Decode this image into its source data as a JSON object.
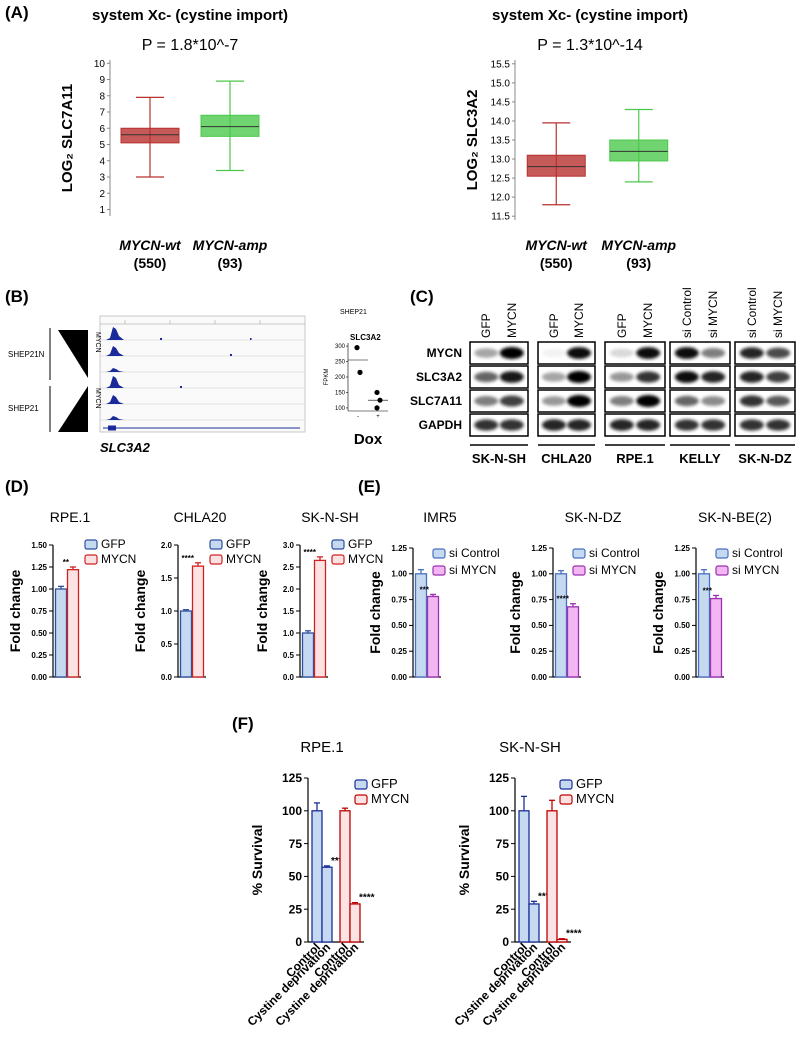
{
  "panel_labels": [
    "(A)",
    "(B)",
    "(C)",
    "(D)",
    "(E)",
    "(F)"
  ],
  "genome_browser": {
    "groups": [
      {
        "label": "SHEP21N",
        "gradient_label": "MYCN"
      },
      {
        "label": "SHEP21",
        "gradient_label": "MYCN"
      }
    ],
    "gene": "SLC3A2"
  },
  "western_blot": {
    "rows": [
      "MYCN",
      "SLC3A2",
      "SLC7A11",
      "GAPDH"
    ],
    "columns": [
      {
        "cell_line": "SK-N-SH",
        "lanes": [
          "GFP",
          "MYCN"
        ]
      },
      {
        "cell_line": "CHLA20",
        "lanes": [
          "GFP",
          "MYCN"
        ]
      },
      {
        "cell_line": "RPE.1",
        "lanes": [
          "GFP",
          "MYCN"
        ]
      },
      {
        "cell_line": "KELLY",
        "lanes": [
          "si Control",
          "si MYCN"
        ]
      },
      {
        "cell_line": "SK-N-DZ",
        "lanes": [
          "si Control",
          "si MYCN"
        ]
      }
    ]
  },
  "chart_data": [
    {
      "type": "box",
      "title": "system Xc-  (cystine import)",
      "subtitle": "P = 1.8*10^-7",
      "y_label": "LOG₂ SLC7A11",
      "categories": [
        "MYCN-wt",
        "MYCN-amp"
      ],
      "counts": [
        "(550)",
        "(93)"
      ],
      "colors": [
        "#b8312f",
        "#4cc94c"
      ],
      "whisker_low": [
        3.0,
        3.4
      ],
      "q1": [
        5.1,
        5.5
      ],
      "median": [
        5.6,
        6.1
      ],
      "q3": [
        6.0,
        6.8
      ],
      "whisker_high": [
        7.9,
        8.9
      ],
      "ylim": [
        0.6,
        10.2
      ],
      "yticks": [
        1,
        2,
        3,
        4,
        5,
        6,
        7,
        8,
        9,
        10
      ]
    },
    {
      "type": "box",
      "title": "system Xc-  (cystine import)",
      "subtitle": "P = 1.3*10^-14",
      "y_label": "LOG₂ SLC3A2",
      "categories": [
        "MYCN-wt",
        "MYCN-amp"
      ],
      "counts": [
        "(550)",
        "(93)"
      ],
      "colors": [
        "#b8312f",
        "#4cc94c"
      ],
      "whisker_low": [
        11.8,
        12.4
      ],
      "q1": [
        12.55,
        12.95
      ],
      "median": [
        12.8,
        13.2
      ],
      "q3": [
        13.1,
        13.5
      ],
      "whisker_high": [
        13.95,
        14.3
      ],
      "ylim": [
        11.4,
        15.6
      ],
      "yticks": [
        11.5,
        {
          "value": 12,
          "label": "12.0"
        },
        12.5,
        {
          "value": 13,
          "label": "13.0"
        },
        13.5,
        {
          "value": 14,
          "label": "14.0"
        },
        14.5,
        {
          "value": 15,
          "label": "15.0"
        },
        15.5
      ]
    },
    {
      "type": "dot",
      "header": "SHEP21",
      "title": "SLC3A2",
      "y_label": "FPKM",
      "x_label": "Dox",
      "categories": [
        "-",
        "+"
      ],
      "groups": [
        [
          295,
          215
        ],
        [
          150,
          125,
          100
        ]
      ],
      "means": [
        255,
        125
      ],
      "ylim": [
        90,
        310
      ],
      "yticks": [
        100,
        150,
        200,
        250,
        300
      ]
    },
    {
      "type": "bar",
      "title": "RPE.1",
      "y_label": "Fold change",
      "categories": [
        null,
        null
      ],
      "significance": [
        null,
        "**"
      ],
      "series": [
        {
          "name": "GFP",
          "fill": "#c5d9f1",
          "color": "#2e4fa0",
          "values": [
            1.0,
            null
          ],
          "errors": [
            0.03,
            null
          ]
        },
        {
          "name": "MYCN",
          "fill": "#fbe3e3",
          "color": "#d02020",
          "values": [
            null,
            1.22
          ],
          "errors": [
            null,
            0.03
          ]
        }
      ],
      "ylim": [
        0,
        1.5
      ],
      "yticks": [
        {
          "value": 0,
          "label": "0.00"
        },
        0.25,
        {
          "value": 0.5,
          "label": "0.50"
        },
        0.75,
        {
          "value": 1,
          "label": "1.00"
        },
        1.25,
        {
          "value": 1.5,
          "label": "1.50"
        }
      ]
    },
    {
      "type": "bar",
      "title": "CHLA20",
      "y_label": "Fold change",
      "categories": [
        null,
        null
      ],
      "significance": [
        null,
        "****"
      ],
      "series": [
        {
          "name": "GFP",
          "fill": "#c5d9f1",
          "color": "#2e4fa0",
          "values": [
            1.0,
            null
          ],
          "errors": [
            0.02,
            null
          ]
        },
        {
          "name": "MYCN",
          "fill": "#fbe3e3",
          "color": "#d02020",
          "values": [
            null,
            1.68
          ],
          "errors": [
            null,
            0.05
          ]
        }
      ],
      "ylim": [
        0,
        2
      ],
      "yticks": [
        {
          "value": 0,
          "label": "0.0"
        },
        0.5,
        {
          "value": 1,
          "label": "1.0"
        },
        1.5,
        {
          "value": 2,
          "label": "2.0"
        }
      ]
    },
    {
      "type": "bar",
      "title": "SK-N-SH",
      "y_label": "Fold change",
      "categories": [
        null,
        null
      ],
      "significance": [
        null,
        "****"
      ],
      "series": [
        {
          "name": "GFP",
          "fill": "#c5d9f1",
          "color": "#2e4fa0",
          "values": [
            1.0,
            null
          ],
          "errors": [
            0.05,
            null
          ]
        },
        {
          "name": "MYCN",
          "fill": "#fbe3e3",
          "color": "#d02020",
          "values": [
            null,
            2.65
          ],
          "errors": [
            null,
            0.08
          ]
        }
      ],
      "ylim": [
        0,
        3
      ],
      "yticks": [
        {
          "value": 0,
          "label": "0.0"
        },
        0.5,
        {
          "value": 1,
          "label": "1.0"
        },
        1.5,
        {
          "value": 2,
          "label": "2.0"
        },
        2.5,
        {
          "value": 3,
          "label": "3.0"
        }
      ]
    },
    {
      "type": "bar",
      "title": "IMR5",
      "y_label": "Fold change",
      "categories": [
        null,
        null
      ],
      "significance": [
        null,
        "***"
      ],
      "series": [
        {
          "name": "si Control",
          "fill": "#c5d9f1",
          "color": "#4a6fc0",
          "values": [
            1.0,
            null
          ],
          "errors": [
            0.04,
            null
          ]
        },
        {
          "name": "si MYCN",
          "fill": "#f2b6f2",
          "color": "#9b30b0",
          "values": [
            null,
            0.78
          ],
          "errors": [
            null,
            0.02
          ]
        }
      ],
      "ylim": [
        0,
        1.25
      ],
      "yticks": [
        {
          "value": 0,
          "label": "0.00"
        },
        0.25,
        {
          "value": 0.5,
          "label": "0.50"
        },
        0.75,
        {
          "value": 1,
          "label": "1.00"
        },
        1.25
      ]
    },
    {
      "type": "bar",
      "title": "SK-N-DZ",
      "y_label": "Fold change",
      "categories": [
        null,
        null
      ],
      "significance": [
        null,
        "****"
      ],
      "series": [
        {
          "name": "si Control",
          "fill": "#c5d9f1",
          "color": "#4a6fc0",
          "values": [
            1.0,
            null
          ],
          "errors": [
            0.03,
            null
          ]
        },
        {
          "name": "si MYCN",
          "fill": "#f2b6f2",
          "color": "#9b30b0",
          "values": [
            null,
            0.68
          ],
          "errors": [
            null,
            0.03
          ]
        }
      ],
      "ylim": [
        0,
        1.25
      ],
      "yticks": [
        {
          "value": 0,
          "label": "0.00"
        },
        0.25,
        {
          "value": 0.5,
          "label": "0.50"
        },
        0.75,
        {
          "value": 1,
          "label": "1.00"
        },
        1.25
      ]
    },
    {
      "type": "bar",
      "title": "SK-N-BE(2)",
      "y_label": "Fold change",
      "categories": [
        null,
        null
      ],
      "significance": [
        null,
        "***"
      ],
      "series": [
        {
          "name": "si Control",
          "fill": "#c5d9f1",
          "color": "#4a6fc0",
          "values": [
            1.0,
            null
          ],
          "errors": [
            0.04,
            null
          ]
        },
        {
          "name": "si MYCN",
          "fill": "#f2b6f2",
          "color": "#9b30b0",
          "values": [
            null,
            0.76
          ],
          "errors": [
            null,
            0.03
          ]
        }
      ],
      "ylim": [
        0,
        1.25
      ],
      "yticks": [
        {
          "value": 0,
          "label": "0.00"
        },
        0.25,
        {
          "value": 0.5,
          "label": "0.50"
        },
        0.75,
        {
          "value": 1,
          "label": "1.00"
        },
        1.25
      ]
    },
    {
      "type": "bar",
      "title": "RPE.1",
      "y_label": "% Survival",
      "categories": [
        "Control",
        "Cystine deprivation",
        "Control",
        "Cystine deprivation"
      ],
      "significance": [
        null,
        "***",
        null,
        "****"
      ],
      "series": [
        {
          "name": "GFP",
          "fill": "#c5d9f1",
          "color": "#1a2f9a",
          "values": [
            100,
            57,
            null,
            null
          ],
          "errors": [
            6,
            1,
            null,
            null
          ]
        },
        {
          "name": "MYCN",
          "fill": "#fbe3e3",
          "color": "#c00000",
          "values": [
            null,
            null,
            100,
            29
          ],
          "errors": [
            null,
            null,
            2,
            1
          ]
        }
      ],
      "ylim": [
        0,
        125
      ],
      "yticks": [
        0,
        25,
        50,
        75,
        100,
        125
      ]
    },
    {
      "type": "bar",
      "title": "SK-N-SH",
      "y_label": "% Survival",
      "categories": [
        "Control",
        "Cystine deprivation",
        "Control",
        "Cystine deprivation"
      ],
      "significance": [
        null,
        "***",
        null,
        "****"
      ],
      "series": [
        {
          "name": "GFP",
          "fill": "#c5d9f1",
          "color": "#1a2f9a",
          "values": [
            100,
            29,
            null,
            null
          ],
          "errors": [
            11,
            2,
            null,
            null
          ]
        },
        {
          "name": "MYCN",
          "fill": "#fbe3e3",
          "color": "#c00000",
          "values": [
            null,
            null,
            100,
            2
          ],
          "errors": [
            null,
            null,
            8,
            0.5
          ]
        }
      ],
      "ylim": [
        0,
        125
      ],
      "yticks": [
        0,
        25,
        50,
        75,
        100,
        125
      ]
    }
  ]
}
